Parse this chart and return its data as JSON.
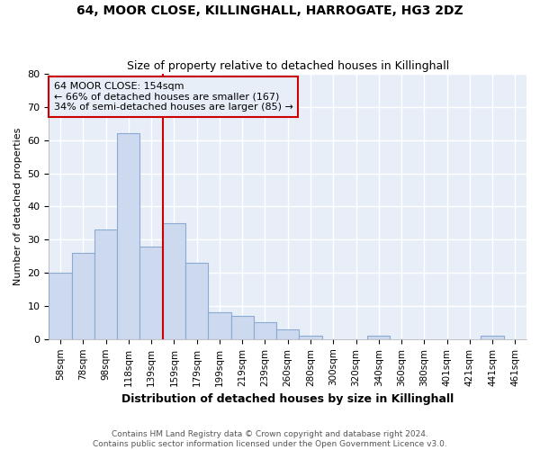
{
  "title": "64, MOOR CLOSE, KILLINGHALL, HARROGATE, HG3 2DZ",
  "subtitle": "Size of property relative to detached houses in Killinghall",
  "xlabel": "Distribution of detached houses by size in Killinghall",
  "ylabel": "Number of detached properties",
  "bar_color": "#cdd9ee",
  "bar_edge_color": "#8aaad4",
  "categories": [
    "58sqm",
    "78sqm",
    "98sqm",
    "118sqm",
    "139sqm",
    "159sqm",
    "179sqm",
    "199sqm",
    "219sqm",
    "239sqm",
    "260sqm",
    "280sqm",
    "300sqm",
    "320sqm",
    "340sqm",
    "360sqm",
    "380sqm",
    "401sqm",
    "421sqm",
    "441sqm",
    "461sqm"
  ],
  "values": [
    20,
    26,
    33,
    62,
    28,
    35,
    23,
    8,
    7,
    5,
    3,
    1,
    0,
    0,
    1,
    0,
    0,
    0,
    0,
    1,
    0
  ],
  "ylim": [
    0,
    80
  ],
  "yticks": [
    0,
    10,
    20,
    30,
    40,
    50,
    60,
    70,
    80
  ],
  "property_line_x": 4.5,
  "annotation_text1": "64 MOOR CLOSE: 154sqm",
  "annotation_text2": "← 66% of detached houses are smaller (167)",
  "annotation_text3": "34% of semi-detached houses are larger (85) →",
  "annotation_box_color": "#cc0000",
  "footer_line1": "Contains HM Land Registry data © Crown copyright and database right 2024.",
  "footer_line2": "Contains public sector information licensed under the Open Government Licence v3.0.",
  "fig_background_color": "#ffffff",
  "plot_background_color": "#e8eef8",
  "grid_color": "#ffffff",
  "title_fontsize": 10,
  "subtitle_fontsize": 9
}
